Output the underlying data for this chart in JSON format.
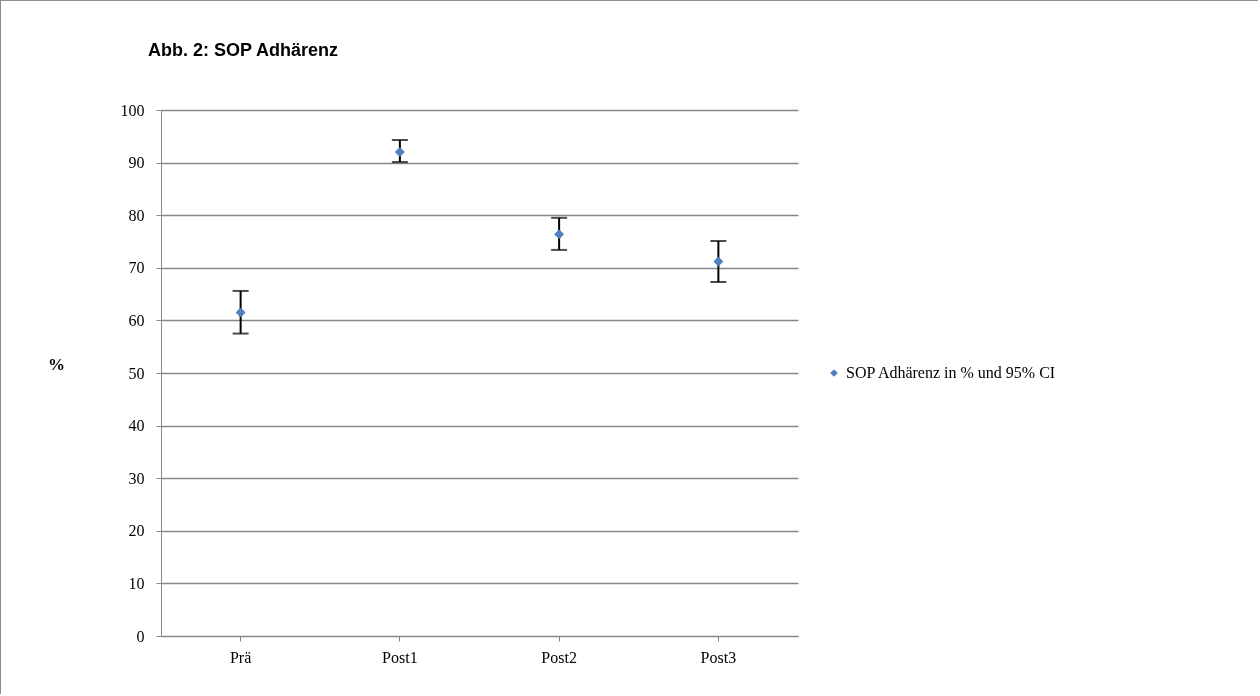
{
  "chart_data": {
    "type": "scatter",
    "title": "Abb. 2: SOP Adhärenz",
    "ylabel": "%",
    "categories": [
      "Prä",
      "Post1",
      "Post2",
      "Post3"
    ],
    "series": [
      {
        "name": "SOP Adhärenz in % und 95% CI",
        "color": "#4f81bd",
        "values": [
          61.5,
          92.0,
          76.4,
          71.2
        ],
        "errors": [
          [
            57.5,
            65.6
          ],
          [
            90.1,
            94.3
          ],
          [
            73.4,
            79.5
          ],
          [
            67.3,
            75.1
          ]
        ]
      }
    ],
    "ylim": [
      0,
      100
    ],
    "yticks": [
      0,
      10,
      20,
      30,
      40,
      50,
      60,
      70,
      80,
      90,
      100
    ],
    "grid": "y",
    "legend": "right",
    "marker": "diamond"
  }
}
